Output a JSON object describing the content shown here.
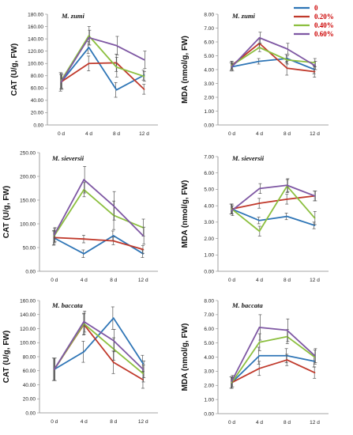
{
  "legend": {
    "items": [
      {
        "label": "0",
        "color": "#2e75b6"
      },
      {
        "label": "0.20%",
        "color": "#c0392b"
      },
      {
        "label": "0.40%",
        "color": "#8cbf3f"
      },
      {
        "label": "0.60%",
        "color": "#7e57a3"
      }
    ]
  },
  "chart_data": [
    {
      "type": "line",
      "title": "M. zumi",
      "ylabel": "CAT (U/g, FW)",
      "categories": [
        "0 d",
        "4 d",
        "8 d",
        "12 d"
      ],
      "ylim": [
        0,
        180
      ],
      "yticks": [
        "0.00",
        "20.00",
        "40.00",
        "60.00",
        "80.00",
        "100.00",
        "120.00",
        "140.00",
        "160.00",
        "180.00"
      ],
      "grid": false,
      "series": [
        {
          "name": "0",
          "color": "#2e75b6",
          "values": [
            70,
            126,
            57,
            81
          ],
          "errors": [
            15,
            10,
            12,
            8
          ]
        },
        {
          "name": "0.20%",
          "color": "#c0392b",
          "values": [
            70,
            100,
            101,
            58
          ],
          "errors": [
            12,
            12,
            14,
            8
          ]
        },
        {
          "name": "0.40%",
          "color": "#8cbf3f",
          "values": [
            72,
            145,
            94,
            79
          ],
          "errors": [
            12,
            15,
            16,
            8
          ]
        },
        {
          "name": "0.60%",
          "color": "#7e57a3",
          "values": [
            70,
            142,
            129,
            106
          ],
          "errors": [
            12,
            12,
            15,
            14
          ]
        }
      ]
    },
    {
      "type": "line",
      "title": "M. zumi",
      "ylabel": "MDA (nmol/g, FW)",
      "categories": [
        "0 d",
        "4 d",
        "8 d",
        "12 d"
      ],
      "ylim": [
        0,
        8
      ],
      "yticks": [
        "0.00",
        "1.00",
        "2.00",
        "3.00",
        "4.00",
        "5.00",
        "6.00",
        "7.00",
        "8.00"
      ],
      "grid": false,
      "series": [
        {
          "name": "0",
          "color": "#2e75b6",
          "values": [
            4.2,
            4.6,
            4.8,
            4.0
          ],
          "errors": [
            0.3,
            0.2,
            0.3,
            0.3
          ]
        },
        {
          "name": "0.20%",
          "color": "#c0392b",
          "values": [
            4.3,
            5.9,
            4.1,
            3.85
          ],
          "errors": [
            0.3,
            0.3,
            0.5,
            0.4
          ]
        },
        {
          "name": "0.40%",
          "color": "#8cbf3f",
          "values": [
            4.3,
            5.6,
            4.7,
            4.5
          ],
          "errors": [
            0.3,
            0.3,
            0.3,
            0.3
          ]
        },
        {
          "name": "0.60%",
          "color": "#7e57a3",
          "values": [
            4.2,
            6.3,
            5.5,
            4.3
          ],
          "errors": [
            0.3,
            0.4,
            0.4,
            0.3
          ]
        }
      ]
    },
    {
      "type": "line",
      "title": "M. sieversii",
      "ylabel": "CAT (U/g, FW)",
      "categories": [
        "0 d",
        "4 d",
        "8 d",
        "12 d"
      ],
      "ylim": [
        0,
        250
      ],
      "yticks": [
        "0.00",
        "50.00",
        "100.00",
        "150.00",
        "200.00",
        "250.00"
      ],
      "grid": false,
      "series": [
        {
          "name": "0",
          "color": "#2e75b6",
          "values": [
            70,
            37,
            75,
            37
          ],
          "errors": [
            15,
            8,
            10,
            8
          ]
        },
        {
          "name": "0.20%",
          "color": "#c0392b",
          "values": [
            71,
            68,
            64,
            46
          ],
          "errors": [
            15,
            8,
            8,
            8
          ]
        },
        {
          "name": "0.40%",
          "color": "#8cbf3f",
          "values": [
            75,
            172,
            118,
            92
          ],
          "errors": [
            15,
            15,
            30,
            18
          ]
        },
        {
          "name": "0.60%",
          "color": "#7e57a3",
          "values": [
            77,
            193,
            138,
            75
          ],
          "errors": [
            15,
            28,
            30,
            18
          ]
        }
      ]
    },
    {
      "type": "line",
      "title": "M. sieversii",
      "ylabel": "MDA (nmol/g, FW)",
      "categories": [
        "0 d",
        "4 d",
        "8 d",
        "12 d"
      ],
      "ylim": [
        0,
        7
      ],
      "yticks": [
        "0.00",
        "1.00",
        "2.00",
        "3.00",
        "4.00",
        "5.00",
        "6.00",
        "7.00"
      ],
      "grid": false,
      "series": [
        {
          "name": "0",
          "color": "#2e75b6",
          "values": [
            3.8,
            3.1,
            3.35,
            2.8
          ],
          "errors": [
            0.3,
            0.2,
            0.2,
            0.2
          ]
        },
        {
          "name": "0.20%",
          "color": "#c0392b",
          "values": [
            3.8,
            4.15,
            4.4,
            4.6
          ],
          "errors": [
            0.3,
            0.3,
            0.3,
            0.3
          ]
        },
        {
          "name": "0.40%",
          "color": "#8cbf3f",
          "values": [
            3.8,
            2.45,
            5.2,
            3.25
          ],
          "errors": [
            0.3,
            0.3,
            0.4,
            0.4
          ]
        },
        {
          "name": "0.60%",
          "color": "#7e57a3",
          "values": [
            3.7,
            5.05,
            5.25,
            4.6
          ],
          "errors": [
            0.3,
            0.3,
            0.4,
            0.3
          ]
        }
      ]
    },
    {
      "type": "line",
      "title": "M. baccata",
      "ylabel": "CAT (U/g, FW)",
      "categories": [
        "0 d",
        "4 d",
        "8 d",
        "12 d"
      ],
      "ylim": [
        0,
        160
      ],
      "yticks": [
        "0.00",
        "20.00",
        "40.00",
        "60.00",
        "80.00",
        "100.00",
        "120.00",
        "140.00",
        "160.00"
      ],
      "grid": false,
      "series": [
        {
          "name": "0",
          "color": "#2e75b6",
          "values": [
            62,
            87,
            135,
            70
          ],
          "errors": [
            16,
            15,
            16,
            12
          ]
        },
        {
          "name": "0.20%",
          "color": "#c0392b",
          "values": [
            62,
            126,
            72,
            47
          ],
          "errors": [
            16,
            15,
            16,
            12
          ]
        },
        {
          "name": "0.40%",
          "color": "#8cbf3f",
          "values": [
            62,
            127,
            91,
            56
          ],
          "errors": [
            16,
            15,
            16,
            12
          ]
        },
        {
          "name": "0.60%",
          "color": "#7e57a3",
          "values": [
            62,
            130,
            103,
            62
          ],
          "errors": [
            16,
            15,
            16,
            12
          ]
        }
      ]
    },
    {
      "type": "line",
      "title": "M. baccata",
      "ylabel": "MDA (nmol/g, FW)",
      "categories": [
        "0 d",
        "4 d",
        "8 d",
        "12 d"
      ],
      "ylim": [
        0,
        8
      ],
      "yticks": [
        "0.00",
        "1.00",
        "2.00",
        "3.00",
        "4.00",
        "5.00",
        "6.00",
        "7.00",
        "8.00"
      ],
      "grid": false,
      "series": [
        {
          "name": "0",
          "color": "#2e75b6",
          "values": [
            2.2,
            4.1,
            4.1,
            3.7
          ],
          "errors": [
            0.4,
            0.6,
            0.5,
            0.4
          ]
        },
        {
          "name": "0.20%",
          "color": "#c0392b",
          "values": [
            2.2,
            3.2,
            3.8,
            2.9
          ],
          "errors": [
            0.4,
            0.5,
            0.4,
            0.4
          ]
        },
        {
          "name": "0.40%",
          "color": "#8cbf3f",
          "values": [
            2.2,
            5.05,
            5.45,
            4.0
          ],
          "errors": [
            0.4,
            0.6,
            0.5,
            0.5
          ]
        },
        {
          "name": "0.60%",
          "color": "#7e57a3",
          "values": [
            2.3,
            6.1,
            5.9,
            4.1
          ],
          "errors": [
            0.4,
            0.9,
            0.8,
            0.5
          ]
        }
      ]
    }
  ]
}
